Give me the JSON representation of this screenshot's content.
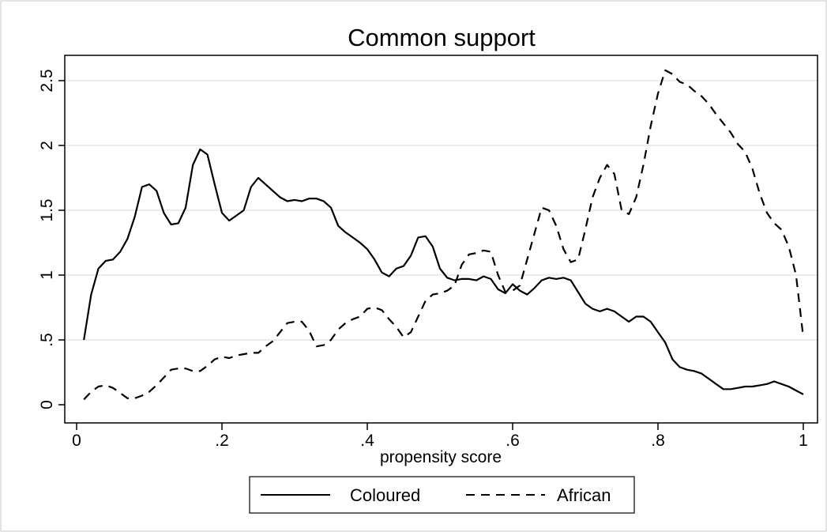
{
  "chart_data": {
    "type": "line",
    "title": "Common support",
    "xlabel": "propensity score",
    "ylabel": "",
    "xlim": [
      0,
      1
    ],
    "ylim": [
      0,
      2.6
    ],
    "x_ticks": [
      {
        "value": 0,
        "label": "0"
      },
      {
        "value": 0.2,
        "label": ".2"
      },
      {
        "value": 0.4,
        "label": ".4"
      },
      {
        "value": 0.6,
        "label": ".6"
      },
      {
        "value": 0.8,
        "label": ".8"
      },
      {
        "value": 1,
        "label": "1"
      }
    ],
    "y_ticks": [
      {
        "value": 0,
        "label": "0"
      },
      {
        "value": 0.5,
        "label": ".5"
      },
      {
        "value": 1,
        "label": "1"
      },
      {
        "value": 1.5,
        "label": "1.5"
      },
      {
        "value": 2,
        "label": "2"
      },
      {
        "value": 2.5,
        "label": "2.5"
      }
    ],
    "grid": "horizontal",
    "legend_position": "bottom",
    "series": [
      {
        "name": "Coloured",
        "style": "solid",
        "color": "#000000",
        "points": [
          [
            0.01,
            0.5
          ],
          [
            0.02,
            0.85
          ],
          [
            0.03,
            1.05
          ],
          [
            0.04,
            1.11
          ],
          [
            0.05,
            1.12
          ],
          [
            0.06,
            1.18
          ],
          [
            0.07,
            1.28
          ],
          [
            0.08,
            1.45
          ],
          [
            0.09,
            1.68
          ],
          [
            0.1,
            1.7
          ],
          [
            0.11,
            1.65
          ],
          [
            0.12,
            1.48
          ],
          [
            0.13,
            1.39
          ],
          [
            0.14,
            1.4
          ],
          [
            0.15,
            1.52
          ],
          [
            0.16,
            1.85
          ],
          [
            0.17,
            1.97
          ],
          [
            0.18,
            1.93
          ],
          [
            0.19,
            1.7
          ],
          [
            0.2,
            1.48
          ],
          [
            0.21,
            1.42
          ],
          [
            0.22,
            1.46
          ],
          [
            0.23,
            1.5
          ],
          [
            0.24,
            1.68
          ],
          [
            0.25,
            1.75
          ],
          [
            0.26,
            1.7
          ],
          [
            0.27,
            1.65
          ],
          [
            0.28,
            1.6
          ],
          [
            0.29,
            1.57
          ],
          [
            0.3,
            1.58
          ],
          [
            0.31,
            1.57
          ],
          [
            0.32,
            1.59
          ],
          [
            0.33,
            1.59
          ],
          [
            0.34,
            1.57
          ],
          [
            0.35,
            1.52
          ],
          [
            0.36,
            1.38
          ],
          [
            0.37,
            1.33
          ],
          [
            0.38,
            1.29
          ],
          [
            0.39,
            1.25
          ],
          [
            0.4,
            1.2
          ],
          [
            0.41,
            1.12
          ],
          [
            0.42,
            1.02
          ],
          [
            0.43,
            0.99
          ],
          [
            0.44,
            1.05
          ],
          [
            0.45,
            1.07
          ],
          [
            0.46,
            1.15
          ],
          [
            0.47,
            1.29
          ],
          [
            0.48,
            1.3
          ],
          [
            0.49,
            1.22
          ],
          [
            0.5,
            1.05
          ],
          [
            0.51,
            0.98
          ],
          [
            0.52,
            0.96
          ],
          [
            0.53,
            0.97
          ],
          [
            0.54,
            0.97
          ],
          [
            0.55,
            0.96
          ],
          [
            0.56,
            0.99
          ],
          [
            0.57,
            0.97
          ],
          [
            0.58,
            0.89
          ],
          [
            0.59,
            0.86
          ],
          [
            0.6,
            0.93
          ],
          [
            0.61,
            0.88
          ],
          [
            0.62,
            0.85
          ],
          [
            0.63,
            0.9
          ],
          [
            0.64,
            0.96
          ],
          [
            0.65,
            0.98
          ],
          [
            0.66,
            0.97
          ],
          [
            0.67,
            0.98
          ],
          [
            0.68,
            0.96
          ],
          [
            0.69,
            0.87
          ],
          [
            0.7,
            0.78
          ],
          [
            0.71,
            0.74
          ],
          [
            0.72,
            0.72
          ],
          [
            0.73,
            0.74
          ],
          [
            0.74,
            0.72
          ],
          [
            0.75,
            0.68
          ],
          [
            0.76,
            0.64
          ],
          [
            0.77,
            0.68
          ],
          [
            0.78,
            0.68
          ],
          [
            0.79,
            0.64
          ],
          [
            0.8,
            0.56
          ],
          [
            0.81,
            0.48
          ],
          [
            0.82,
            0.35
          ],
          [
            0.83,
            0.29
          ],
          [
            0.84,
            0.27
          ],
          [
            0.85,
            0.26
          ],
          [
            0.86,
            0.24
          ],
          [
            0.87,
            0.2
          ],
          [
            0.88,
            0.16
          ],
          [
            0.89,
            0.12
          ],
          [
            0.9,
            0.12
          ],
          [
            0.91,
            0.13
          ],
          [
            0.92,
            0.14
          ],
          [
            0.93,
            0.14
          ],
          [
            0.94,
            0.15
          ],
          [
            0.95,
            0.16
          ],
          [
            0.96,
            0.18
          ],
          [
            0.97,
            0.16
          ],
          [
            0.98,
            0.14
          ],
          [
            0.99,
            0.11
          ],
          [
            1.0,
            0.08
          ]
        ]
      },
      {
        "name": "African",
        "style": "dashed",
        "color": "#000000",
        "points": [
          [
            0.01,
            0.04
          ],
          [
            0.02,
            0.1
          ],
          [
            0.03,
            0.14
          ],
          [
            0.04,
            0.15
          ],
          [
            0.05,
            0.13
          ],
          [
            0.06,
            0.09
          ],
          [
            0.07,
            0.05
          ],
          [
            0.08,
            0.05
          ],
          [
            0.09,
            0.07
          ],
          [
            0.1,
            0.1
          ],
          [
            0.11,
            0.15
          ],
          [
            0.12,
            0.21
          ],
          [
            0.13,
            0.27
          ],
          [
            0.14,
            0.28
          ],
          [
            0.15,
            0.28
          ],
          [
            0.16,
            0.26
          ],
          [
            0.17,
            0.26
          ],
          [
            0.18,
            0.3
          ],
          [
            0.19,
            0.35
          ],
          [
            0.2,
            0.37
          ],
          [
            0.21,
            0.36
          ],
          [
            0.22,
            0.38
          ],
          [
            0.23,
            0.39
          ],
          [
            0.24,
            0.4
          ],
          [
            0.25,
            0.4
          ],
          [
            0.26,
            0.45
          ],
          [
            0.27,
            0.49
          ],
          [
            0.28,
            0.56
          ],
          [
            0.29,
            0.63
          ],
          [
            0.3,
            0.64
          ],
          [
            0.31,
            0.64
          ],
          [
            0.32,
            0.57
          ],
          [
            0.33,
            0.45
          ],
          [
            0.34,
            0.46
          ],
          [
            0.35,
            0.5
          ],
          [
            0.36,
            0.58
          ],
          [
            0.37,
            0.63
          ],
          [
            0.38,
            0.66
          ],
          [
            0.39,
            0.68
          ],
          [
            0.4,
            0.74
          ],
          [
            0.41,
            0.75
          ],
          [
            0.42,
            0.73
          ],
          [
            0.43,
            0.66
          ],
          [
            0.44,
            0.6
          ],
          [
            0.45,
            0.52
          ],
          [
            0.46,
            0.56
          ],
          [
            0.47,
            0.68
          ],
          [
            0.48,
            0.8
          ],
          [
            0.49,
            0.85
          ],
          [
            0.5,
            0.86
          ],
          [
            0.51,
            0.88
          ],
          [
            0.52,
            0.92
          ],
          [
            0.53,
            1.08
          ],
          [
            0.54,
            1.16
          ],
          [
            0.55,
            1.17
          ],
          [
            0.56,
            1.19
          ],
          [
            0.57,
            1.18
          ],
          [
            0.58,
            1.0
          ],
          [
            0.59,
            0.87
          ],
          [
            0.6,
            0.88
          ],
          [
            0.61,
            0.92
          ],
          [
            0.62,
            1.12
          ],
          [
            0.63,
            1.32
          ],
          [
            0.64,
            1.52
          ],
          [
            0.65,
            1.5
          ],
          [
            0.66,
            1.38
          ],
          [
            0.67,
            1.2
          ],
          [
            0.68,
            1.1
          ],
          [
            0.69,
            1.12
          ],
          [
            0.7,
            1.35
          ],
          [
            0.71,
            1.6
          ],
          [
            0.72,
            1.75
          ],
          [
            0.73,
            1.85
          ],
          [
            0.74,
            1.78
          ],
          [
            0.75,
            1.5
          ],
          [
            0.76,
            1.47
          ],
          [
            0.77,
            1.6
          ],
          [
            0.78,
            1.85
          ],
          [
            0.79,
            2.15
          ],
          [
            0.8,
            2.4
          ],
          [
            0.81,
            2.58
          ],
          [
            0.82,
            2.55
          ],
          [
            0.83,
            2.49
          ],
          [
            0.84,
            2.47
          ],
          [
            0.85,
            2.42
          ],
          [
            0.86,
            2.38
          ],
          [
            0.87,
            2.32
          ],
          [
            0.88,
            2.24
          ],
          [
            0.89,
            2.17
          ],
          [
            0.9,
            2.1
          ],
          [
            0.91,
            2.01
          ],
          [
            0.92,
            1.95
          ],
          [
            0.93,
            1.82
          ],
          [
            0.94,
            1.63
          ],
          [
            0.95,
            1.48
          ],
          [
            0.96,
            1.4
          ],
          [
            0.97,
            1.35
          ],
          [
            0.98,
            1.22
          ],
          [
            0.99,
            1.0
          ],
          [
            1.0,
            0.52
          ]
        ]
      }
    ]
  }
}
